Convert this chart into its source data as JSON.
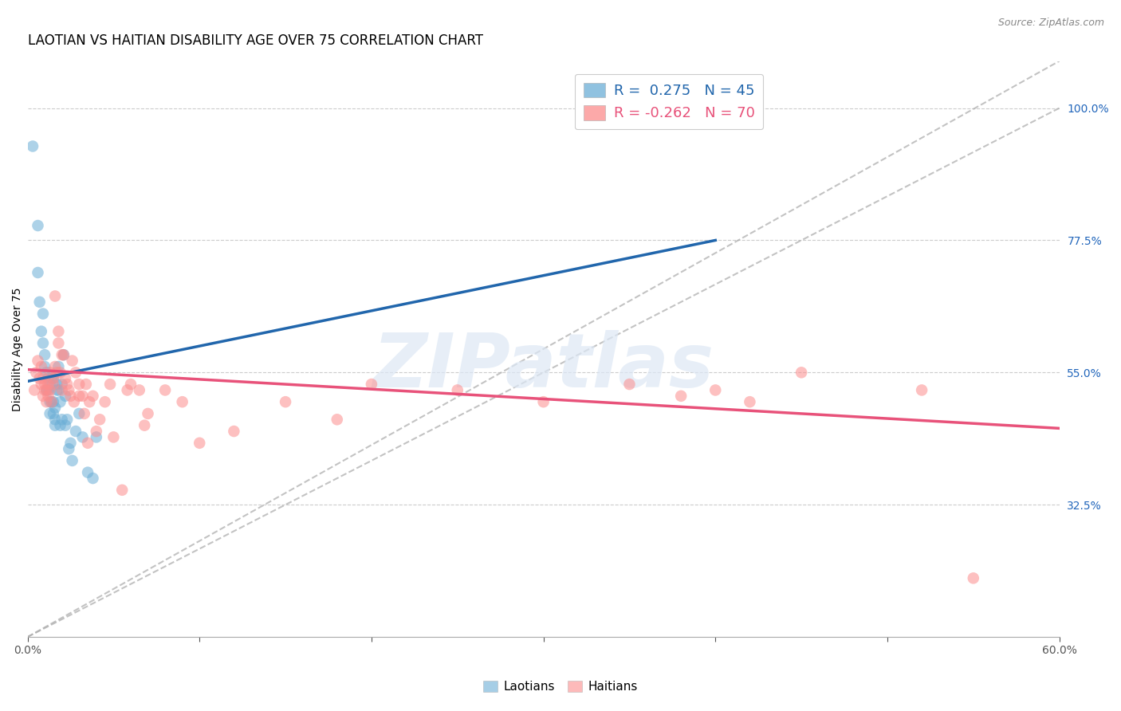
{
  "title": "LAOTIAN VS HAITIAN DISABILITY AGE OVER 75 CORRELATION CHART",
  "source": "Source: ZipAtlas.com",
  "ylabel": "Disability Age Over 75",
  "xlabel": "",
  "xlim": [
    0.0,
    0.6
  ],
  "ylim": [
    0.1,
    1.08
  ],
  "xticks": [
    0.0,
    0.1,
    0.2,
    0.3,
    0.4,
    0.5,
    0.6
  ],
  "xticklabels": [
    "0.0%",
    "",
    "",
    "",
    "",
    "",
    "60.0%"
  ],
  "yticks": [
    0.325,
    0.55,
    0.775,
    1.0
  ],
  "yticklabels": [
    "32.5%",
    "55.0%",
    "77.5%",
    "100.0%"
  ],
  "laotian_color": "#6baed6",
  "haitian_color": "#fc8d8d",
  "laotian_line_color": "#2166ac",
  "haitian_line_color": "#e8527a",
  "ref_line_color": "#aaaaaa",
  "R_laotian": 0.275,
  "N_laotian": 45,
  "R_haitian": -0.262,
  "N_haitian": 70,
  "background_color": "#ffffff",
  "grid_color": "#cccccc",
  "title_fontsize": 12,
  "axis_label_fontsize": 10,
  "tick_fontsize": 10,
  "watermark_text": "ZIPatlas",
  "laotian_line_x": [
    0.0,
    0.4
  ],
  "laotian_line_y": [
    0.535,
    0.775
  ],
  "haitian_line_x": [
    0.0,
    0.6
  ],
  "haitian_line_y": [
    0.555,
    0.455
  ],
  "laotian_x": [
    0.003,
    0.006,
    0.007,
    0.008,
    0.009,
    0.009,
    0.01,
    0.01,
    0.011,
    0.011,
    0.012,
    0.012,
    0.013,
    0.013,
    0.013,
    0.014,
    0.014,
    0.015,
    0.015,
    0.015,
    0.016,
    0.016,
    0.016,
    0.017,
    0.017,
    0.018,
    0.018,
    0.019,
    0.019,
    0.02,
    0.02,
    0.021,
    0.022,
    0.022,
    0.023,
    0.024,
    0.025,
    0.026,
    0.028,
    0.03,
    0.032,
    0.035,
    0.038,
    0.04,
    0.006
  ],
  "laotian_y": [
    0.935,
    0.72,
    0.67,
    0.62,
    0.6,
    0.65,
    0.58,
    0.56,
    0.55,
    0.52,
    0.52,
    0.54,
    0.53,
    0.5,
    0.48,
    0.5,
    0.54,
    0.5,
    0.54,
    0.48,
    0.47,
    0.49,
    0.46,
    0.53,
    0.52,
    0.56,
    0.52,
    0.5,
    0.46,
    0.53,
    0.47,
    0.58,
    0.51,
    0.46,
    0.47,
    0.42,
    0.43,
    0.4,
    0.45,
    0.48,
    0.44,
    0.38,
    0.37,
    0.44,
    0.8
  ],
  "haitian_x": [
    0.004,
    0.005,
    0.006,
    0.007,
    0.008,
    0.008,
    0.009,
    0.009,
    0.01,
    0.01,
    0.011,
    0.011,
    0.012,
    0.012,
    0.013,
    0.013,
    0.014,
    0.015,
    0.015,
    0.016,
    0.016,
    0.017,
    0.018,
    0.018,
    0.019,
    0.02,
    0.02,
    0.021,
    0.022,
    0.023,
    0.024,
    0.025,
    0.026,
    0.027,
    0.028,
    0.03,
    0.03,
    0.032,
    0.033,
    0.034,
    0.035,
    0.036,
    0.038,
    0.04,
    0.042,
    0.045,
    0.048,
    0.05,
    0.055,
    0.058,
    0.06,
    0.065,
    0.068,
    0.07,
    0.08,
    0.09,
    0.1,
    0.12,
    0.15,
    0.18,
    0.2,
    0.25,
    0.3,
    0.35,
    0.38,
    0.4,
    0.42,
    0.45,
    0.52,
    0.55
  ],
  "haitian_y": [
    0.52,
    0.55,
    0.57,
    0.54,
    0.53,
    0.56,
    0.51,
    0.54,
    0.53,
    0.52,
    0.5,
    0.52,
    0.51,
    0.53,
    0.55,
    0.52,
    0.5,
    0.54,
    0.53,
    0.56,
    0.68,
    0.55,
    0.62,
    0.6,
    0.55,
    0.58,
    0.52,
    0.58,
    0.54,
    0.53,
    0.52,
    0.51,
    0.57,
    0.5,
    0.55,
    0.53,
    0.51,
    0.51,
    0.48,
    0.53,
    0.43,
    0.5,
    0.51,
    0.45,
    0.47,
    0.5,
    0.53,
    0.44,
    0.35,
    0.52,
    0.53,
    0.52,
    0.46,
    0.48,
    0.52,
    0.5,
    0.43,
    0.45,
    0.5,
    0.47,
    0.53,
    0.52,
    0.5,
    0.53,
    0.51,
    0.52,
    0.5,
    0.55,
    0.52,
    0.2
  ]
}
